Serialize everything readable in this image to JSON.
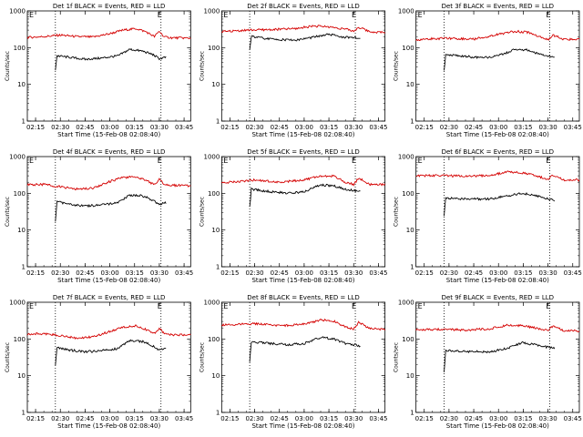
{
  "colors": {
    "events": "#000000",
    "lld": "#d40000",
    "axes": "#000000",
    "background": "#ffffff"
  },
  "chart_data": [
    {
      "type": "line",
      "title": "Det 1f BLACK = Events, RED = LLD",
      "xlabel": "Start Time (15-Feb-08 02:08:40)",
      "ylabel": "Counts/sec",
      "yscale": "log",
      "ylim": [
        1,
        1000
      ],
      "xlim": [
        "02:10",
        "03:49"
      ],
      "grid": false,
      "marker_label": "E",
      "x_ticks": [
        "02:15",
        "02:30",
        "02:45",
        "03:00",
        "03:15",
        "03:30",
        "03:45"
      ],
      "y_ticks": [
        "1",
        "10",
        "100",
        "1000"
      ],
      "vlines": [
        "02:27",
        "03:31"
      ],
      "series": [
        {
          "name": "LLD",
          "color": "red",
          "x": [
            "02:10",
            "02:20",
            "02:30",
            "02:40",
            "02:50",
            "03:00",
            "03:08",
            "03:16",
            "03:22",
            "03:27",
            "03:30",
            "03:33",
            "03:38",
            "03:44",
            "03:49"
          ],
          "values": [
            190,
            200,
            220,
            200,
            195,
            240,
            300,
            330,
            270,
            200,
            280,
            195,
            185,
            185,
            180
          ]
        },
        {
          "name": "Events",
          "color": "black",
          "x": [
            "02:27",
            "02:28",
            "02:35",
            "02:45",
            "02:55",
            "03:05",
            "03:12",
            "03:20",
            "03:26",
            "03:30",
            "03:34"
          ],
          "values": [
            25,
            60,
            55,
            48,
            52,
            60,
            90,
            80,
            65,
            50,
            55
          ]
        }
      ]
    },
    {
      "type": "line",
      "title": "Det 2f BLACK = Events, RED = LLD",
      "xlabel": "Start Time (15-Feb-08 02:08:40)",
      "ylabel": "Counts/sec",
      "yscale": "log",
      "ylim": [
        1,
        1000
      ],
      "xlim": [
        "02:10",
        "03:49"
      ],
      "grid": false,
      "marker_label": "E",
      "x_ticks": [
        "02:15",
        "02:30",
        "02:45",
        "03:00",
        "03:15",
        "03:30",
        "03:45"
      ],
      "y_ticks": [
        "1",
        "10",
        "100",
        "1000"
      ],
      "vlines": [
        "02:27",
        "03:31"
      ],
      "series": [
        {
          "name": "LLD",
          "color": "red",
          "x": [
            "02:10",
            "02:25",
            "02:40",
            "02:55",
            "03:05",
            "03:15",
            "03:25",
            "03:30",
            "03:33",
            "03:40",
            "03:49"
          ],
          "values": [
            270,
            300,
            310,
            330,
            390,
            370,
            320,
            280,
            360,
            270,
            260
          ]
        },
        {
          "name": "Events",
          "color": "black",
          "x": [
            "02:27",
            "02:28",
            "02:40",
            "02:55",
            "03:05",
            "03:15",
            "03:25",
            "03:34"
          ],
          "values": [
            90,
            200,
            170,
            160,
            190,
            230,
            190,
            180
          ]
        }
      ]
    },
    {
      "type": "line",
      "title": "Det 3f BLACK = Events, RED = LLD",
      "xlabel": "Start Time (15-Feb-08 02:08:40)",
      "ylabel": "Counts/sec",
      "yscale": "log",
      "ylim": [
        1,
        1000
      ],
      "xlim": [
        "02:10",
        "03:49"
      ],
      "grid": false,
      "marker_label": "E",
      "x_ticks": [
        "02:15",
        "02:30",
        "02:45",
        "03:00",
        "03:15",
        "03:30",
        "03:45"
      ],
      "y_ticks": [
        "1",
        "10",
        "100",
        "1000"
      ],
      "vlines": [
        "02:27",
        "03:31"
      ],
      "series": [
        {
          "name": "LLD",
          "color": "red",
          "x": [
            "02:10",
            "02:20",
            "02:30",
            "02:45",
            "03:00",
            "03:10",
            "03:18",
            "03:25",
            "03:30",
            "03:33",
            "03:40",
            "03:49"
          ],
          "values": [
            160,
            175,
            180,
            170,
            230,
            280,
            260,
            200,
            160,
            220,
            165,
            170
          ]
        },
        {
          "name": "Events",
          "color": "black",
          "x": [
            "02:27",
            "02:28",
            "02:40",
            "02:50",
            "03:00",
            "03:10",
            "03:18",
            "03:25",
            "03:34"
          ],
          "values": [
            25,
            65,
            58,
            52,
            60,
            90,
            85,
            65,
            55
          ]
        }
      ]
    },
    {
      "type": "line",
      "title": "Det 4f BLACK = Events, RED = LLD",
      "xlabel": "Start Time (15-Feb-08 02:08:40)",
      "ylabel": "Counts/sec",
      "yscale": "log",
      "ylim": [
        1,
        1000
      ],
      "xlim": [
        "02:10",
        "03:49"
      ],
      "grid": false,
      "marker_label": "E",
      "x_ticks": [
        "02:15",
        "02:30",
        "02:45",
        "03:00",
        "03:15",
        "03:30",
        "03:45"
      ],
      "y_ticks": [
        "1",
        "10",
        "100",
        "1000"
      ],
      "vlines": [
        "02:27",
        "03:31"
      ],
      "series": [
        {
          "name": "LLD",
          "color": "red",
          "x": [
            "02:10",
            "02:20",
            "02:30",
            "02:40",
            "02:50",
            "03:00",
            "03:08",
            "03:16",
            "03:22",
            "03:27",
            "03:30",
            "03:33",
            "03:38",
            "03:44",
            "03:49"
          ],
          "values": [
            170,
            175,
            150,
            130,
            140,
            210,
            270,
            280,
            230,
            170,
            250,
            175,
            165,
            165,
            160
          ]
        },
        {
          "name": "Events",
          "color": "black",
          "x": [
            "02:27",
            "02:28",
            "02:35",
            "02:45",
            "02:55",
            "03:05",
            "03:12",
            "03:20",
            "03:26",
            "03:30",
            "03:34"
          ],
          "values": [
            18,
            60,
            50,
            45,
            48,
            55,
            90,
            85,
            65,
            50,
            55
          ]
        }
      ]
    },
    {
      "type": "line",
      "title": "Det 5f BLACK = Events, RED = LLD",
      "xlabel": "Start Time (15-Feb-08 02:08:40)",
      "ylabel": "Counts/sec",
      "yscale": "log",
      "ylim": [
        1,
        1000
      ],
      "xlim": [
        "02:10",
        "03:49"
      ],
      "grid": false,
      "marker_label": "E",
      "x_ticks": [
        "02:15",
        "02:30",
        "02:45",
        "03:00",
        "03:15",
        "03:30",
        "03:45"
      ],
      "y_ticks": [
        "1",
        "10",
        "100",
        "1000"
      ],
      "vlines": [
        "02:27",
        "03:31"
      ],
      "series": [
        {
          "name": "LLD",
          "color": "red",
          "x": [
            "02:10",
            "02:20",
            "02:30",
            "02:45",
            "03:00",
            "03:10",
            "03:18",
            "03:25",
            "03:30",
            "03:33",
            "03:40",
            "03:49"
          ],
          "values": [
            195,
            210,
            230,
            200,
            230,
            300,
            290,
            200,
            175,
            260,
            175,
            175
          ]
        },
        {
          "name": "Events",
          "color": "black",
          "x": [
            "02:27",
            "02:28",
            "02:40",
            "02:50",
            "03:00",
            "03:10",
            "03:18",
            "03:25",
            "03:34"
          ],
          "values": [
            40,
            130,
            110,
            100,
            110,
            170,
            160,
            130,
            110
          ]
        }
      ]
    },
    {
      "type": "line",
      "title": "Det 6f BLACK = Events, RED = LLD",
      "xlabel": "Start Time (15-Feb-08 02:08:40)",
      "ylabel": "Counts/sec",
      "yscale": "log",
      "ylim": [
        1,
        1000
      ],
      "xlim": [
        "02:10",
        "03:49"
      ],
      "grid": false,
      "marker_label": "E",
      "x_ticks": [
        "02:15",
        "02:30",
        "02:45",
        "03:00",
        "03:15",
        "03:30",
        "03:45"
      ],
      "y_ticks": [
        "1",
        "10",
        "100",
        "1000"
      ],
      "vlines": [
        "02:27",
        "03:31"
      ],
      "series": [
        {
          "name": "LLD",
          "color": "red",
          "x": [
            "02:10",
            "02:25",
            "02:40",
            "02:55",
            "03:05",
            "03:15",
            "03:25",
            "03:30",
            "03:33",
            "03:40",
            "03:49"
          ],
          "values": [
            300,
            310,
            290,
            310,
            380,
            360,
            280,
            240,
            320,
            230,
            230
          ]
        },
        {
          "name": "Events",
          "color": "black",
          "x": [
            "02:27",
            "02:28",
            "02:40",
            "02:55",
            "03:05",
            "03:15",
            "03:25",
            "03:34"
          ],
          "values": [
            25,
            75,
            70,
            70,
            85,
            100,
            80,
            65
          ]
        }
      ]
    },
    {
      "type": "line",
      "title": "Det 7f BLACK = Events, RED = LLD",
      "xlabel": "Start Time (15-Feb-08 02:08:40)",
      "ylabel": "Counts/sec",
      "yscale": "log",
      "ylim": [
        1,
        1000
      ],
      "xlim": [
        "02:10",
        "03:49"
      ],
      "grid": false,
      "marker_label": "E",
      "x_ticks": [
        "02:15",
        "02:30",
        "02:45",
        "03:00",
        "03:15",
        "03:30",
        "03:45"
      ],
      "y_ticks": [
        "1",
        "10",
        "100",
        "1000"
      ],
      "vlines": [
        "02:27",
        "03:31"
      ],
      "series": [
        {
          "name": "LLD",
          "color": "red",
          "x": [
            "02:10",
            "02:20",
            "02:30",
            "02:40",
            "02:50",
            "03:00",
            "03:08",
            "03:16",
            "03:22",
            "03:27",
            "03:30",
            "03:33",
            "03:38",
            "03:44",
            "03:49"
          ],
          "values": [
            135,
            140,
            125,
            105,
            115,
            160,
            210,
            230,
            180,
            140,
            200,
            140,
            130,
            130,
            130
          ]
        },
        {
          "name": "Events",
          "color": "black",
          "x": [
            "02:27",
            "02:28",
            "02:35",
            "02:45",
            "02:55",
            "03:05",
            "03:12",
            "03:20",
            "03:26",
            "03:30",
            "03:34"
          ],
          "values": [
            20,
            60,
            50,
            45,
            48,
            55,
            90,
            85,
            65,
            50,
            55
          ]
        }
      ]
    },
    {
      "type": "line",
      "title": "Det 8f BLACK = Events, RED = LLD",
      "xlabel": "Start Time (15-Feb-08 02:08:40)",
      "ylabel": "Counts/sec",
      "yscale": "log",
      "ylim": [
        1,
        1000
      ],
      "xlim": [
        "02:10",
        "03:49"
      ],
      "grid": false,
      "marker_label": "E",
      "x_ticks": [
        "02:15",
        "02:30",
        "02:45",
        "03:00",
        "03:15",
        "03:30",
        "03:45"
      ],
      "y_ticks": [
        "1",
        "10",
        "100",
        "1000"
      ],
      "vlines": [
        "02:27",
        "03:31"
      ],
      "series": [
        {
          "name": "LLD",
          "color": "red",
          "x": [
            "02:10",
            "02:20",
            "02:30",
            "02:45",
            "03:00",
            "03:10",
            "03:18",
            "03:25",
            "03:30",
            "03:33",
            "03:40",
            "03:49"
          ],
          "values": [
            240,
            250,
            260,
            230,
            250,
            330,
            310,
            210,
            190,
            280,
            190,
            185
          ]
        },
        {
          "name": "Events",
          "color": "black",
          "x": [
            "02:27",
            "02:28",
            "02:40",
            "02:50",
            "03:00",
            "03:10",
            "03:18",
            "03:25",
            "03:34"
          ],
          "values": [
            25,
            85,
            75,
            70,
            75,
            110,
            100,
            75,
            65
          ]
        }
      ]
    },
    {
      "type": "line",
      "title": "Det 9f BLACK = Events, RED = LLD",
      "xlabel": "Start Time (15-Feb-08 02:08:40)",
      "ylabel": "Counts/sec",
      "yscale": "log",
      "ylim": [
        1,
        1000
      ],
      "xlim": [
        "02:10",
        "03:49"
      ],
      "grid": false,
      "marker_label": "E",
      "x_ticks": [
        "02:15",
        "02:30",
        "02:45",
        "03:00",
        "03:15",
        "03:30",
        "03:45"
      ],
      "y_ticks": [
        "1",
        "10",
        "100",
        "1000"
      ],
      "vlines": [
        "02:27",
        "03:31"
      ],
      "series": [
        {
          "name": "LLD",
          "color": "red",
          "x": [
            "02:10",
            "02:25",
            "02:40",
            "02:55",
            "03:05",
            "03:15",
            "03:25",
            "03:30",
            "03:33",
            "03:40",
            "03:49"
          ],
          "values": [
            175,
            185,
            175,
            190,
            240,
            230,
            190,
            170,
            230,
            165,
            165
          ]
        },
        {
          "name": "Events",
          "color": "black",
          "x": [
            "02:27",
            "02:28",
            "02:40",
            "02:55",
            "03:05",
            "03:15",
            "03:25",
            "03:34"
          ],
          "values": [
            12,
            50,
            45,
            45,
            55,
            80,
            65,
            55
          ]
        }
      ]
    }
  ]
}
